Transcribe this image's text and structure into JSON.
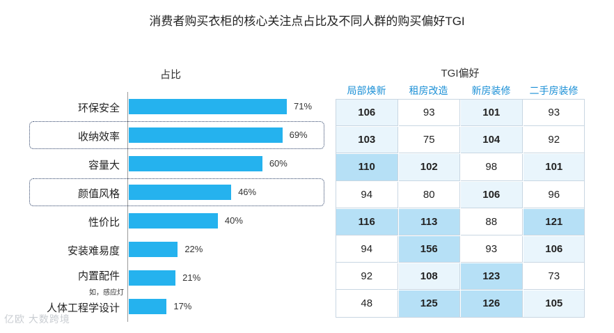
{
  "title": "消费者购买衣柜的核心关注点占比及不同人群的购买偏好TGI",
  "bar_header": "占比",
  "tgi_header": "TGI偏好",
  "watermark": "亿欧 大数跨境",
  "colors": {
    "bar": "#25b2ee",
    "tgi_header": "#1a8fd6",
    "cell_light": "#e9f5fc",
    "cell_mid": "#d3ecfa",
    "cell_strong": "#b6e0f6",
    "highlight_border": "#2a3f66"
  },
  "chart_data": [
    {
      "type": "bar",
      "orientation": "horizontal",
      "categories": [
        "环保安全",
        "收纳效率",
        "容量大",
        "颜值风格",
        "性价比",
        "安装难易度",
        "内置配件",
        "人体工程学设计"
      ],
      "category_notes": [
        "",
        "",
        "",
        "",
        "",
        "",
        "如，感应灯",
        ""
      ],
      "values": [
        71,
        69,
        60,
        46,
        40,
        22,
        21,
        17
      ],
      "value_labels": [
        "71%",
        "69%",
        "60%",
        "46%",
        "40%",
        "22%",
        "21%",
        "17%"
      ],
      "highlighted": [
        "收纳效率",
        "颜值风格"
      ],
      "title": "占比",
      "xlim": [
        0,
        100
      ]
    },
    {
      "type": "table",
      "title": "TGI偏好",
      "columns": [
        "局部焕新",
        "租房改造",
        "新房装修",
        "二手房装修"
      ],
      "rows": [
        [
          106,
          93,
          101,
          93
        ],
        [
          103,
          75,
          104,
          92
        ],
        [
          110,
          102,
          98,
          101
        ],
        [
          94,
          80,
          106,
          96
        ],
        [
          116,
          113,
          88,
          121
        ],
        [
          94,
          156,
          93,
          106
        ],
        [
          92,
          108,
          123,
          73
        ],
        [
          48,
          125,
          126,
          105
        ]
      ]
    }
  ]
}
